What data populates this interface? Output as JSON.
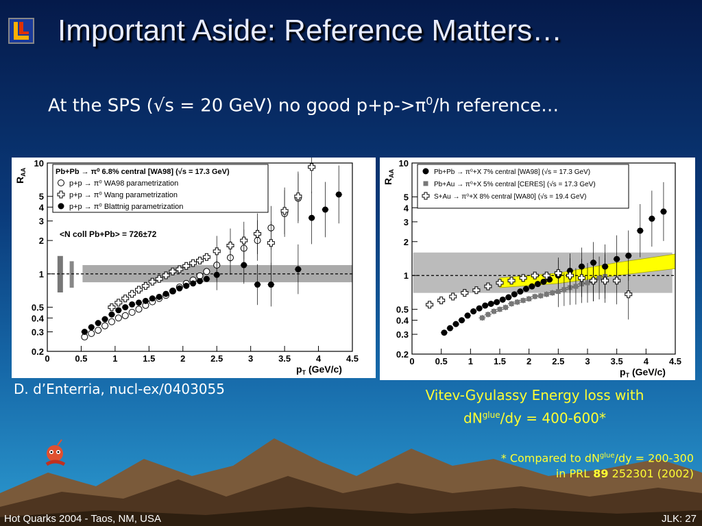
{
  "slide": {
    "title": "Important Aside: Reference Matters…",
    "subtitle_pre": "At the SPS (√s = 20 GeV) no good p+p->π",
    "subtitle_sup": "0",
    "subtitle_post": "/h reference…",
    "citation": "D. d’Enterria, nucl-ex/0403055",
    "vitev_line1": "Vitev-Gyulassy Energy loss with",
    "vitev_line2_pre": "dN",
    "vitev_line2_sup": "glue",
    "vitev_line2_post": "/dy = 400-600*",
    "note_line1_pre": "* Compared to dN",
    "note_line1_sup": "glue",
    "note_line1_post": "/dy = 200-300",
    "note_line2_pre": "in PRL ",
    "note_line2_bold": "89",
    "note_line2_post": " 252301 (2002)",
    "footer_left": "Hot Quarks 2004 - Taos, NM, USA",
    "footer_right": "JLK: 27",
    "colors": {
      "accent_yellow": "#ffff33",
      "title": "#e8ecff"
    }
  },
  "chart_data": [
    {
      "type": "scatter",
      "ylabel_main": "R",
      "ylabel_sub": "AA",
      "xlabel_main": "p",
      "xlabel_sub": "T",
      "xlabel_unit": " (GeV/c)",
      "xlim": [
        0,
        4.5
      ],
      "ylim": [
        0.2,
        10
      ],
      "yscale": "log",
      "xticks": [
        "0",
        "0.5",
        "1",
        "1.5",
        "2",
        "2.5",
        "3",
        "3.5",
        "4",
        "4.5"
      ],
      "yticks": [
        "0.2",
        "0.3",
        "0.4",
        "0.5",
        "1",
        "2",
        "3",
        "4",
        "5",
        "10"
      ],
      "legend": [
        "Pb+Pb → π⁰ 6.8% central [WA98] (√s = 17.3 GeV)",
        "p+p → π⁰ WA98 parametrization",
        "p+p → π⁰ Wang parametrization",
        "p+p → π⁰ Blattnig parametrization"
      ],
      "annotation": "<N coll Pb+Pb> = 726±72",
      "series": [
        {
          "name": "p+p → π⁰ WA98 parametrization",
          "marker": "open-circle",
          "x": [
            0.55,
            0.65,
            0.75,
            0.85,
            0.95,
            1.05,
            1.15,
            1.25,
            1.35,
            1.45,
            1.55,
            1.65,
            1.75,
            1.85,
            1.95,
            2.05,
            2.15,
            2.25,
            2.35,
            2.5,
            2.7,
            2.9,
            3.1,
            3.3,
            3.5,
            3.7
          ],
          "y": [
            0.27,
            0.29,
            0.31,
            0.34,
            0.37,
            0.4,
            0.42,
            0.45,
            0.48,
            0.52,
            0.56,
            0.6,
            0.64,
            0.7,
            0.76,
            0.82,
            0.88,
            0.96,
            1.05,
            1.2,
            1.4,
            1.7,
            2.0,
            2.6,
            3.5,
            4.8
          ]
        },
        {
          "name": "p+p → π⁰ Wang parametrization",
          "marker": "open-cross",
          "x": [
            0.95,
            1.05,
            1.15,
            1.25,
            1.35,
            1.45,
            1.55,
            1.65,
            1.75,
            1.85,
            1.95,
            2.05,
            2.15,
            2.25,
            2.35,
            2.5,
            2.7,
            2.9,
            3.1,
            3.3,
            3.5,
            3.7,
            3.9
          ],
          "y": [
            0.5,
            0.55,
            0.6,
            0.66,
            0.72,
            0.78,
            0.85,
            0.9,
            0.97,
            1.05,
            1.1,
            1.18,
            1.25,
            1.32,
            1.42,
            1.6,
            1.8,
            2.0,
            2.3,
            1.9,
            3.7,
            5.0,
            9.2
          ]
        },
        {
          "name": "p+p → π⁰ Blattnig parametrization",
          "marker": "filled-circle",
          "x": [
            0.55,
            0.65,
            0.75,
            0.85,
            0.95,
            1.05,
            1.15,
            1.25,
            1.35,
            1.45,
            1.55,
            1.65,
            1.75,
            1.85,
            1.95,
            2.05,
            2.15,
            2.25,
            2.35,
            2.5,
            2.9,
            3.1,
            3.3,
            3.7,
            3.9,
            4.1,
            4.3
          ],
          "y": [
            0.3,
            0.33,
            0.36,
            0.39,
            0.43,
            0.47,
            0.5,
            0.53,
            0.55,
            0.57,
            0.6,
            0.62,
            0.66,
            0.7,
            0.74,
            0.78,
            0.82,
            0.86,
            0.9,
            0.98,
            1.2,
            0.8,
            0.8,
            1.1,
            3.2,
            3.8,
            5.2
          ]
        }
      ]
    },
    {
      "type": "scatter",
      "ylabel_main": "R",
      "ylabel_sub": "AA",
      "xlabel_main": "p",
      "xlabel_sub": "T",
      "xlabel_unit": " (GeV/c)",
      "xlim": [
        0,
        4.5
      ],
      "ylim": [
        0.2,
        10
      ],
      "yscale": "log",
      "xticks": [
        "0",
        "0.5",
        "1",
        "1.5",
        "2",
        "2.5",
        "3",
        "3.5",
        "4",
        "4.5"
      ],
      "yticks": [
        "0.2",
        "0.3",
        "0.4",
        "0.5",
        "1",
        "2",
        "3",
        "4",
        "5",
        "10"
      ],
      "legend": [
        "Pb+Pb → π⁰+X  7%  central [WA98] (√s = 17.3 GeV)",
        "Pb+Au → π⁰+X  5% central [CERES] (√s = 17.3 GeV)",
        "S+Au → π⁰+X 8%  central [WA80] (√s = 19.4 GeV)"
      ],
      "series": [
        {
          "name": "Pb+Pb → π⁰+X 7% central [WA98]",
          "marker": "filled-circle",
          "x": [
            0.55,
            0.65,
            0.75,
            0.85,
            0.95,
            1.05,
            1.15,
            1.25,
            1.35,
            1.45,
            1.55,
            1.65,
            1.75,
            1.85,
            1.95,
            2.05,
            2.15,
            2.25,
            2.35,
            2.5,
            2.7,
            2.9,
            3.1,
            3.3,
            3.5,
            3.7,
            3.9,
            4.1,
            4.3
          ],
          "y": [
            0.31,
            0.34,
            0.37,
            0.4,
            0.44,
            0.48,
            0.51,
            0.54,
            0.56,
            0.58,
            0.61,
            0.64,
            0.68,
            0.72,
            0.76,
            0.8,
            0.84,
            0.88,
            0.92,
            1.0,
            1.1,
            1.2,
            1.3,
            1.2,
            1.4,
            1.5,
            2.5,
            3.2,
            3.7
          ]
        },
        {
          "name": "Pb+Au → π⁰+X 5% central [CERES]",
          "marker": "filled-square",
          "x": [
            1.2,
            1.3,
            1.4,
            1.5,
            1.6,
            1.7,
            1.8,
            1.9,
            2.0,
            2.1,
            2.2,
            2.3,
            2.4,
            2.5,
            2.6,
            2.7,
            2.8,
            2.9,
            3.0,
            3.1,
            3.2,
            3.3
          ],
          "y": [
            0.42,
            0.45,
            0.48,
            0.5,
            0.52,
            0.56,
            0.58,
            0.6,
            0.62,
            0.65,
            0.66,
            0.68,
            0.7,
            0.72,
            0.75,
            0.78,
            0.8,
            0.84,
            0.86,
            0.9,
            0.95,
            0.98
          ]
        },
        {
          "name": "S+Au → π⁰+X 8% central [WA80]",
          "marker": "open-cross",
          "x": [
            0.3,
            0.5,
            0.7,
            0.9,
            1.1,
            1.3,
            1.5,
            1.7,
            1.9,
            2.1,
            2.3,
            2.5,
            2.7,
            2.9,
            3.1,
            3.3,
            3.5,
            3.7
          ],
          "y": [
            0.55,
            0.6,
            0.65,
            0.7,
            0.74,
            0.8,
            0.86,
            0.9,
            0.95,
            1.0,
            1.0,
            1.05,
            1.0,
            0.95,
            0.9,
            0.9,
            0.9,
            0.68
          ]
        }
      ]
    }
  ]
}
